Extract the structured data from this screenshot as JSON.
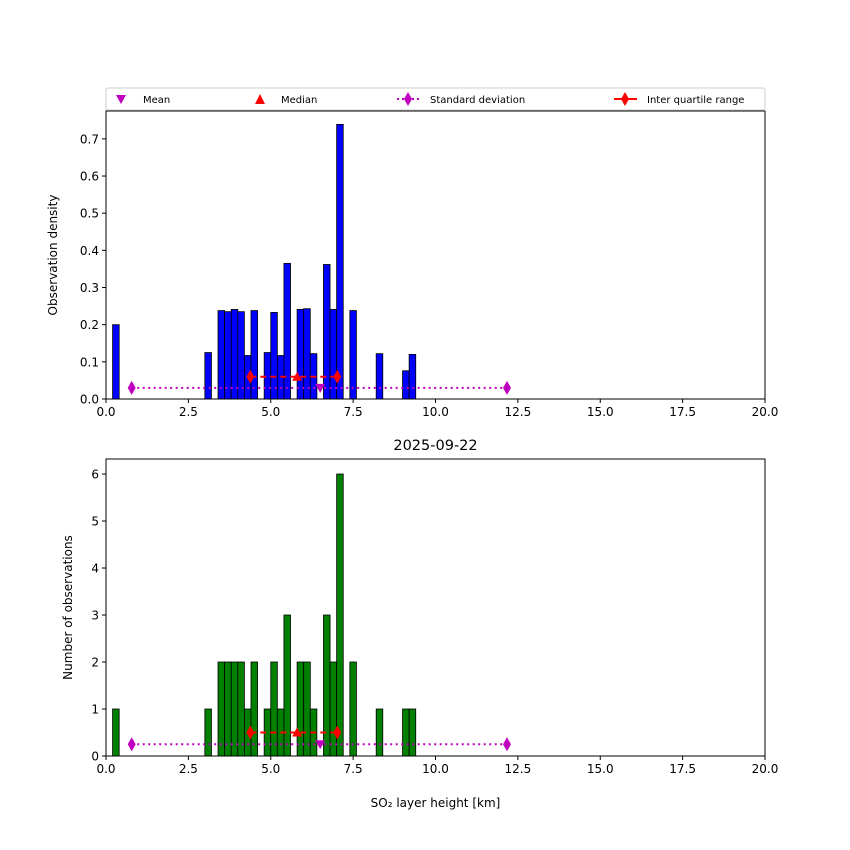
{
  "legend": {
    "mean": "Mean",
    "median": "Median",
    "std": "Standard deviation",
    "iqr": "Inter quartile range"
  },
  "colors": {
    "density_bar": "#0000ff",
    "count_bar": "#008000",
    "mean": "#bf00bf",
    "median": "#ff0000",
    "std": "#bf00bf",
    "iqr": "#ff0000"
  },
  "chart_data": [
    {
      "type": "bar",
      "title": "",
      "xlabel": "",
      "ylabel": "Observation density",
      "xlim": [
        0,
        20
      ],
      "ylim": [
        0,
        0.775
      ],
      "xticks": [
        "0.0",
        "2.5",
        "5.0",
        "7.5",
        "10.0",
        "12.5",
        "15.0",
        "17.5",
        "20.0"
      ],
      "yticks": [
        "0.0",
        "0.1",
        "0.2",
        "0.3",
        "0.4",
        "0.5",
        "0.6",
        "0.7"
      ],
      "bin_width": 0.2,
      "bin_starts": [
        0.2,
        3.0,
        3.4,
        3.6,
        3.8,
        4.0,
        4.2,
        4.4,
        4.8,
        5.0,
        5.2,
        5.4,
        5.8,
        6.0,
        6.2,
        6.6,
        6.8,
        7.0,
        7.4,
        8.2,
        9.0,
        9.2
      ],
      "values": [
        0.2,
        0.125,
        0.238,
        0.235,
        0.241,
        0.235,
        0.117,
        0.238,
        0.125,
        0.233,
        0.117,
        0.365,
        0.241,
        0.243,
        0.122,
        0.362,
        0.241,
        0.739,
        0.238,
        0.122,
        0.076,
        0.12
      ],
      "stats": {
        "mean": 6.5,
        "median": 5.8,
        "std_range": [
          0.78,
          12.17
        ],
        "iqr_range": [
          4.38,
          7.02
        ],
        "marker_y": 0.03,
        "iqr_y": 0.06
      }
    },
    {
      "type": "bar",
      "title": "2025-09-22",
      "xlabel": "SO₂ layer height [km]",
      "ylabel": "Number of observations",
      "xlim": [
        0,
        20
      ],
      "ylim": [
        0,
        6.32
      ],
      "xticks": [
        "0.0",
        "2.5",
        "5.0",
        "7.5",
        "10.0",
        "12.5",
        "15.0",
        "17.5",
        "20.0"
      ],
      "yticks": [
        "0",
        "1",
        "2",
        "3",
        "4",
        "5",
        "6"
      ],
      "bin_width": 0.2,
      "bin_starts": [
        0.2,
        3.0,
        3.4,
        3.6,
        3.8,
        4.0,
        4.2,
        4.4,
        4.8,
        5.0,
        5.2,
        5.4,
        5.8,
        6.0,
        6.2,
        6.6,
        6.8,
        7.0,
        7.4,
        8.2,
        9.0,
        9.2
      ],
      "values": [
        1,
        1,
        2,
        2,
        2,
        2,
        1,
        2,
        1,
        2,
        1,
        3,
        2,
        2,
        1,
        3,
        2,
        6,
        2,
        1,
        1,
        1
      ],
      "stats": {
        "mean": 6.5,
        "median": 5.8,
        "std_range": [
          0.78,
          12.17
        ],
        "iqr_range": [
          4.38,
          7.02
        ],
        "marker_y": 0.25,
        "iqr_y": 0.5
      }
    }
  ]
}
